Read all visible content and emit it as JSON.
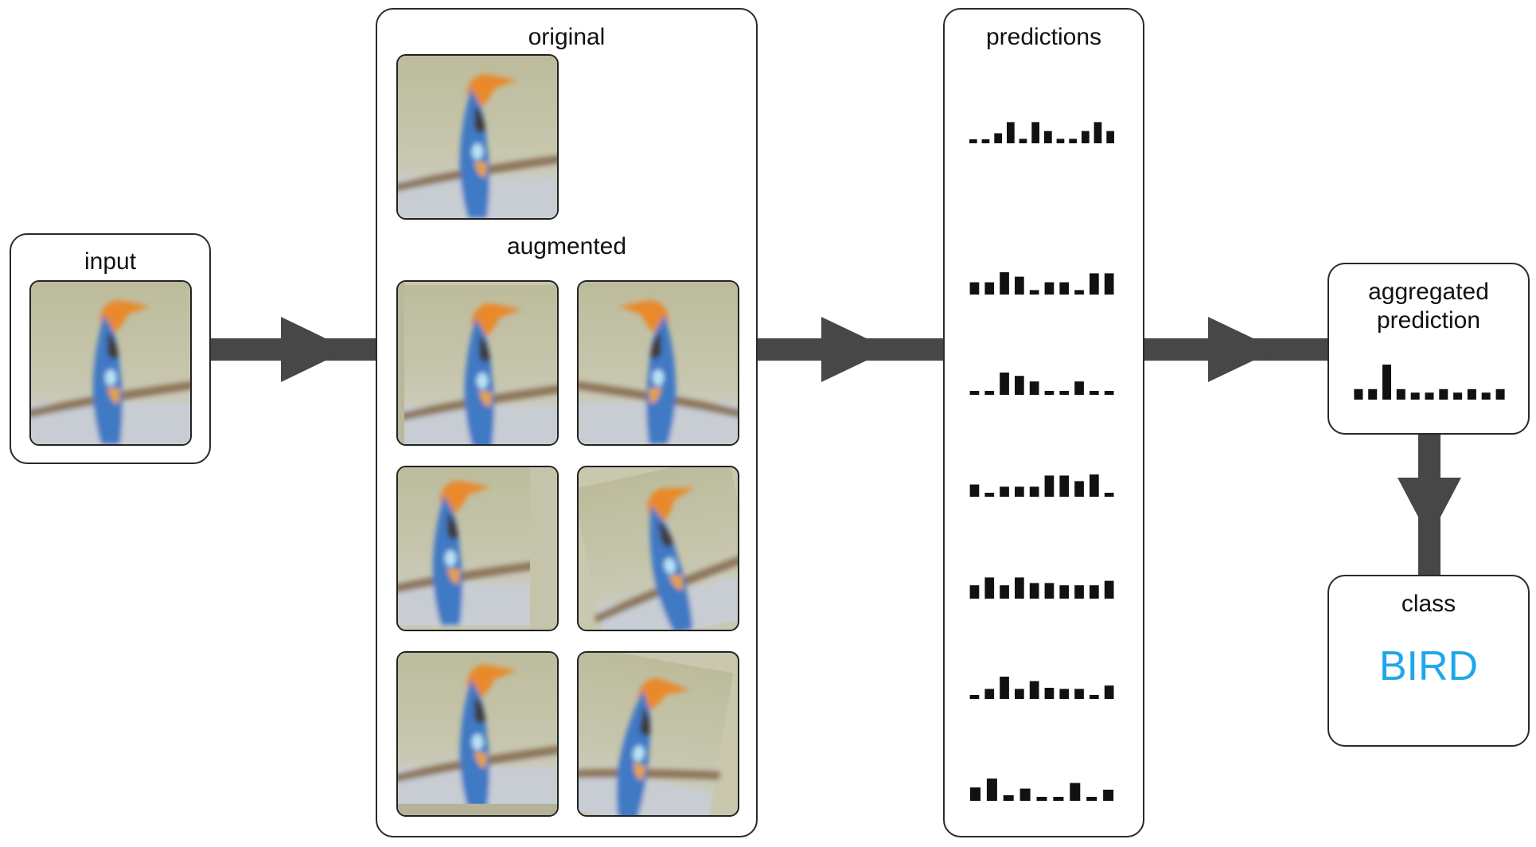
{
  "input": {
    "label": "input"
  },
  "augment": {
    "original_label": "original",
    "augmented_label": "augmented"
  },
  "predictions": {
    "label": "predictions",
    "rows": [
      [
        0.15,
        0.15,
        0.45,
        0.95,
        0.2,
        0.95,
        0.55,
        0.2,
        0.2,
        0.55,
        0.95,
        0.55
      ],
      [
        0.55,
        0.55,
        1.0,
        0.8,
        0.2,
        0.55,
        0.55,
        0.2,
        0.95,
        0.95
      ],
      [
        0.15,
        0.15,
        1.0,
        0.85,
        0.6,
        0.15,
        0.15,
        0.6,
        0.15,
        0.15
      ],
      [
        0.55,
        0.15,
        0.45,
        0.45,
        0.45,
        0.95,
        0.95,
        0.7,
        1.0,
        0.15
      ],
      [
        0.6,
        0.95,
        0.6,
        0.95,
        0.7,
        0.7,
        0.6,
        0.6,
        0.6,
        0.8
      ],
      [
        0.15,
        0.45,
        1.0,
        0.45,
        0.8,
        0.5,
        0.45,
        0.45,
        0.15,
        0.6
      ],
      [
        0.6,
        1.0,
        0.25,
        0.55,
        0.15,
        0.15,
        0.8,
        0.15,
        0.5
      ]
    ]
  },
  "aggregated": {
    "label_line1": "aggregated",
    "label_line2": "prediction",
    "values": [
      0.3,
      0.3,
      1.0,
      0.3,
      0.2,
      0.2,
      0.3,
      0.2,
      0.3,
      0.2,
      0.3
    ]
  },
  "result": {
    "label": "class",
    "value": "BIRD",
    "color": "#1ea7ea"
  },
  "colors": {
    "arrow": "#474747",
    "bar": "#111111",
    "box_border": "#2a2a2a"
  }
}
